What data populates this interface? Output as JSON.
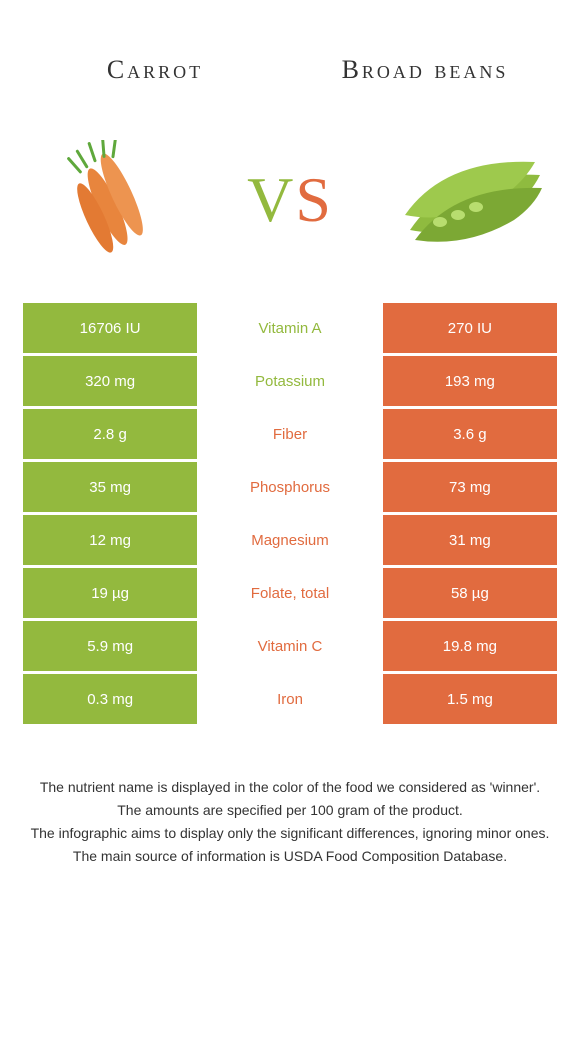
{
  "colors": {
    "orange": "#e16b3f",
    "green": "#93b93e",
    "white": "#ffffff",
    "text_dark": "#333333",
    "left_val_text": "#ffffff",
    "right_val_text": "#ffffff"
  },
  "header": {
    "left_title": "Carrot",
    "right_title": "Broad beans"
  },
  "vs": {
    "v_char": "V",
    "s_char": "S",
    "v_color": "#93b93e",
    "s_color": "#e16b3f"
  },
  "table": {
    "left_bg": "#93b93e",
    "right_bg": "#e16b3f",
    "left_text_color": "#ffffff",
    "right_text_color": "#ffffff",
    "rows": [
      {
        "left": "16706 IU",
        "label": "Vitamin A",
        "right": "270 IU",
        "winner": "left"
      },
      {
        "left": "320 mg",
        "label": "Potassium",
        "right": "193 mg",
        "winner": "left"
      },
      {
        "left": "2.8 g",
        "label": "Fiber",
        "right": "3.6 g",
        "winner": "right"
      },
      {
        "left": "35 mg",
        "label": "Phosphorus",
        "right": "73 mg",
        "winner": "right"
      },
      {
        "left": "12 mg",
        "label": "Magnesium",
        "right": "31 mg",
        "winner": "right"
      },
      {
        "left": "19 µg",
        "label": "Folate, total",
        "right": "58 µg",
        "winner": "right"
      },
      {
        "left": "5.9 mg",
        "label": "Vitamin C",
        "right": "19.8 mg",
        "winner": "right"
      },
      {
        "left": "0.3 mg",
        "label": "Iron",
        "right": "1.5 mg",
        "winner": "right"
      }
    ]
  },
  "footer": {
    "lines": [
      "The nutrient name is displayed in the color of the food we considered as 'winner'.",
      "The amounts are specified per 100 gram of the product.",
      "The infographic aims to display only the significant differences, ignoring minor ones.",
      "The main source of information is USDA Food Composition Database."
    ]
  }
}
